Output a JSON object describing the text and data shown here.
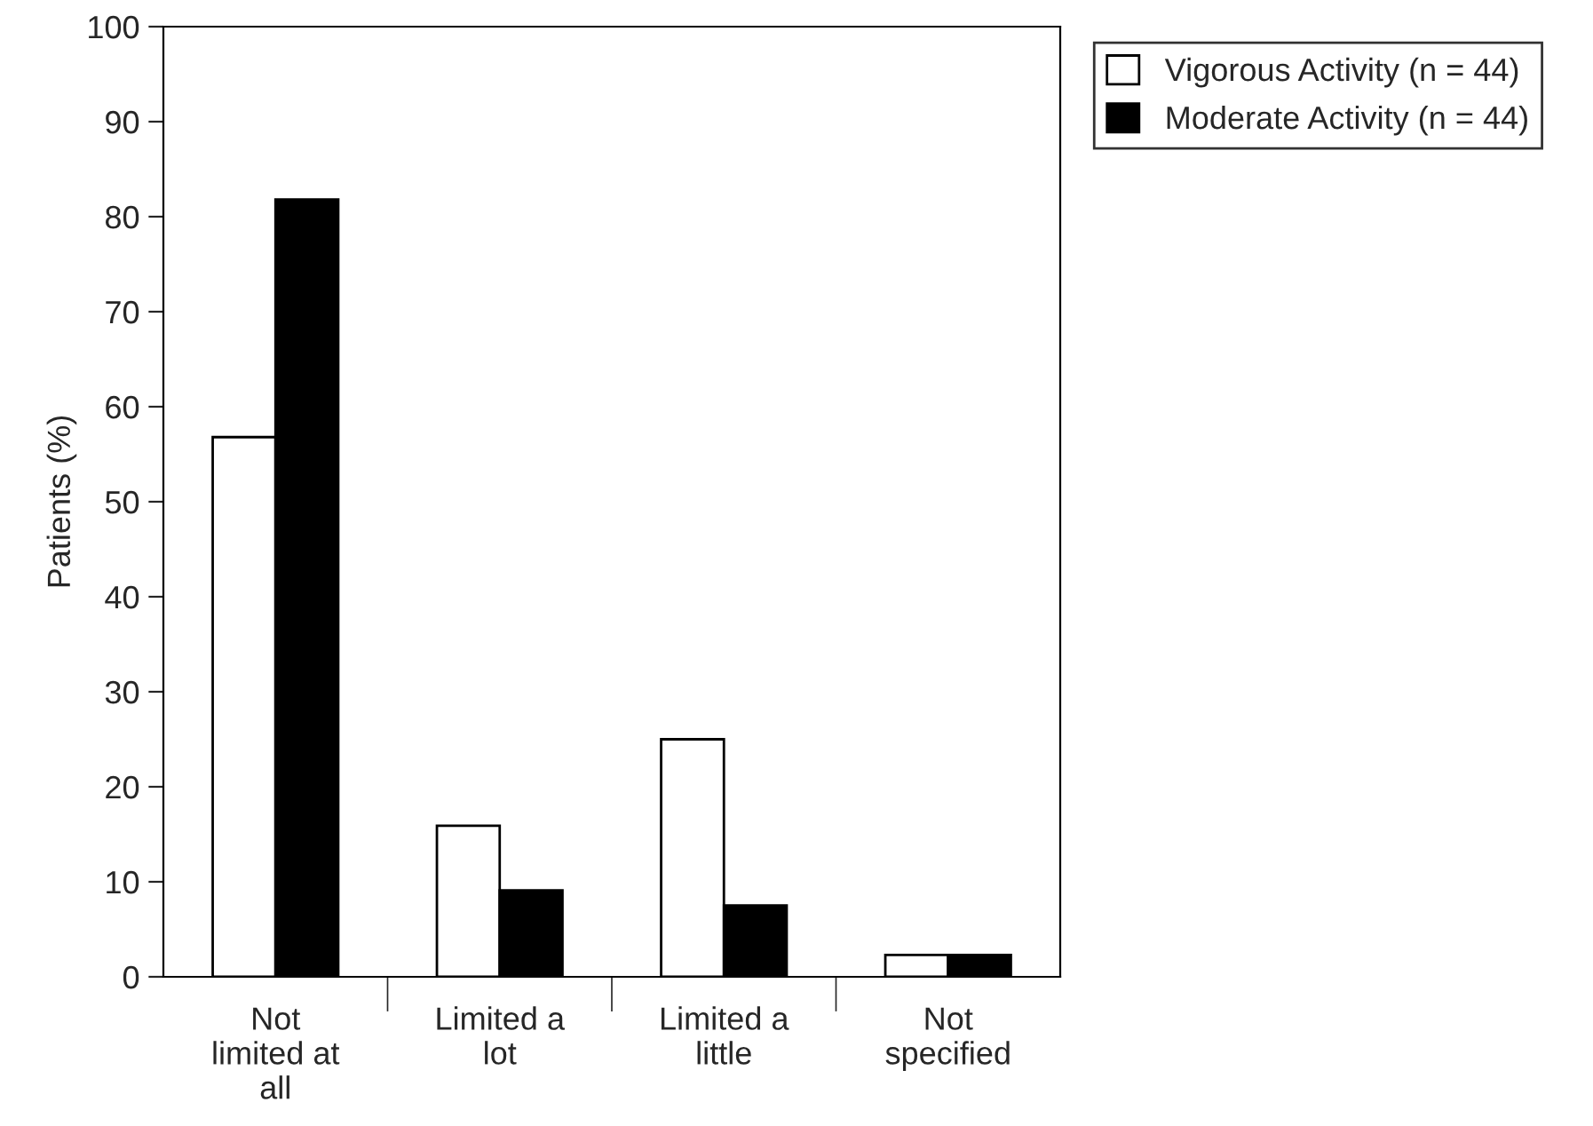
{
  "chart_data": {
    "type": "bar",
    "ylabel": "Patients (%)",
    "categories": [
      "Not\nlimited at\nall",
      "Limited a\nlot",
      "Limited a\nlittle",
      "Not\nspecified"
    ],
    "series": [
      {
        "name": "Vigorous Activity (n = 44)",
        "color": "#ffffff",
        "values": [
          56.8,
          15.9,
          25.0,
          2.3
        ]
      },
      {
        "name": "Moderate Activity (n = 44)",
        "color": "#000000",
        "values": [
          81.8,
          9.1,
          7.5,
          2.3
        ]
      }
    ],
    "ylim": [
      0,
      100
    ],
    "yticks": [
      0,
      10,
      20,
      30,
      40,
      50,
      60,
      70,
      80,
      90,
      100
    ],
    "grid": false,
    "legend": "top right"
  }
}
